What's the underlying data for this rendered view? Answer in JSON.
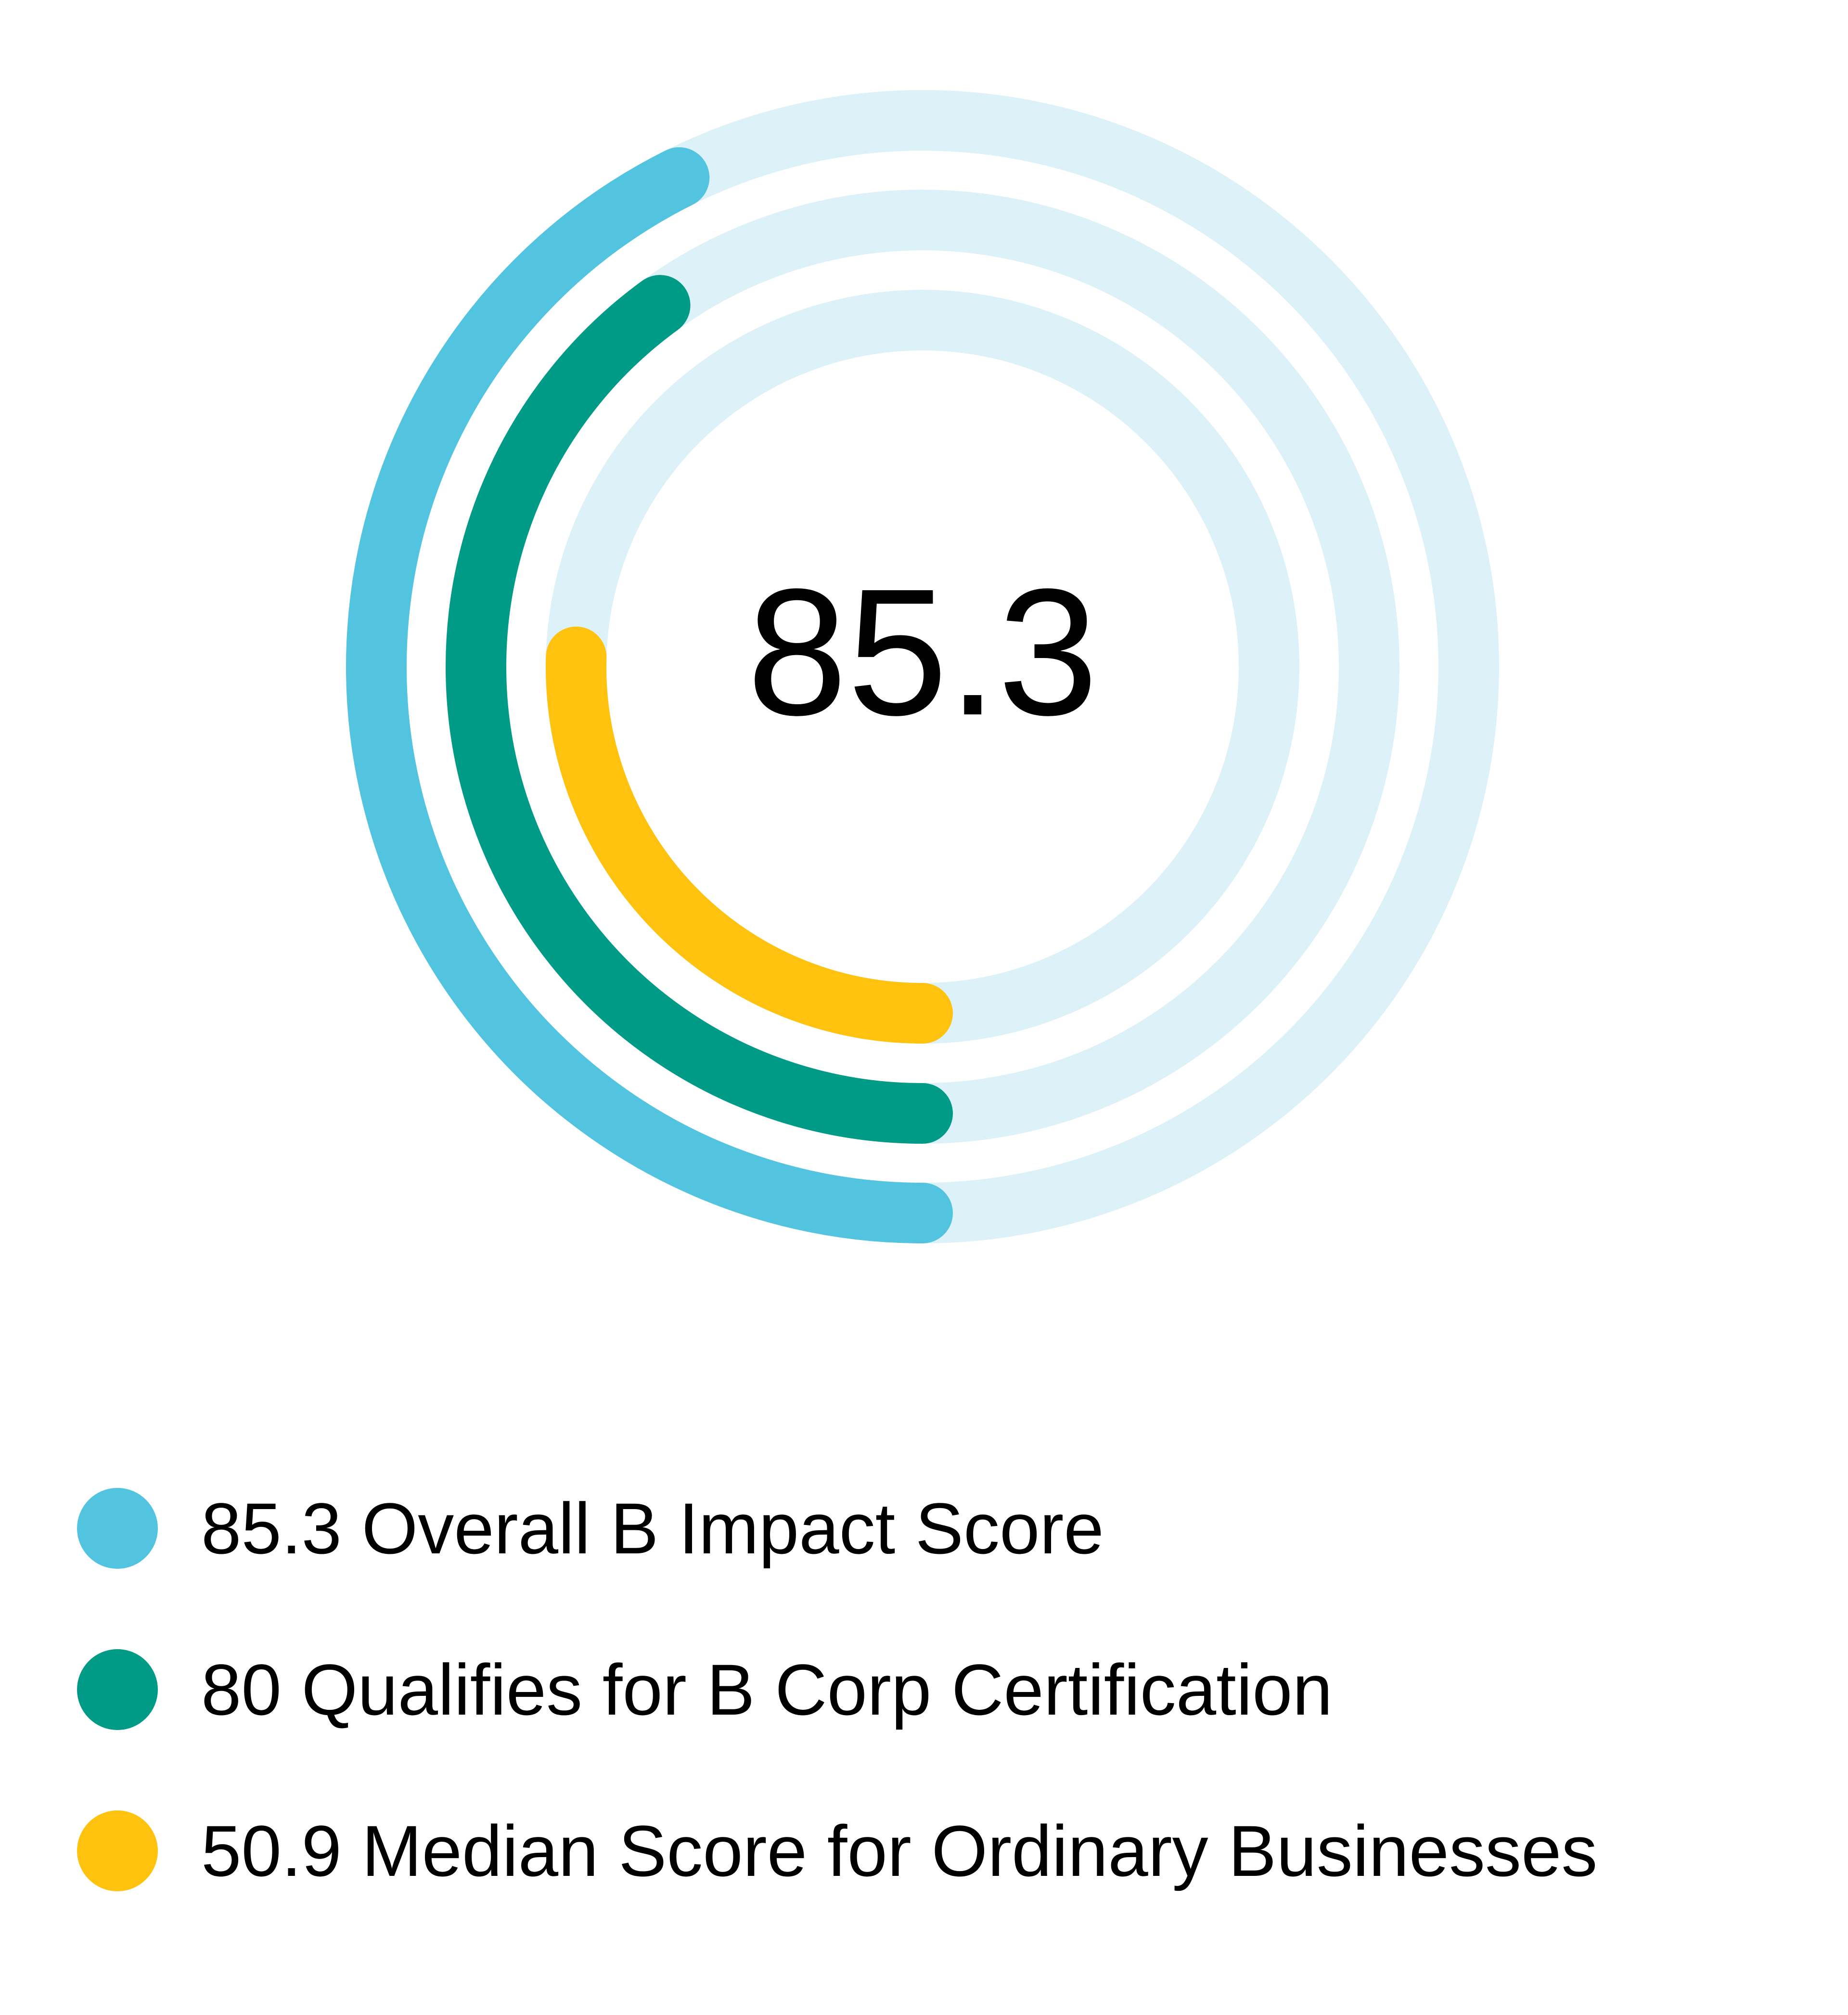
{
  "chart_data": {
    "type": "radial-bar",
    "center_value": "85.3",
    "max": 100,
    "series": [
      {
        "name": "Overall B Impact Score",
        "value": 85.3,
        "label": "85.3 Overall B Impact Score",
        "color": "#52C4E0"
      },
      {
        "name": "Qualifies for B Corp Certification",
        "value": 80,
        "label": "80 Qualifies for B Corp Certification",
        "color": "#009B86"
      },
      {
        "name": "Median Score for Ordinary Businesses",
        "value": 50.9,
        "label": "50.9 Median Score for Ordinary Businesses",
        "color": "#FFC20E"
      }
    ],
    "track_color": "#DDF1F8",
    "legend_position": "bottom"
  }
}
